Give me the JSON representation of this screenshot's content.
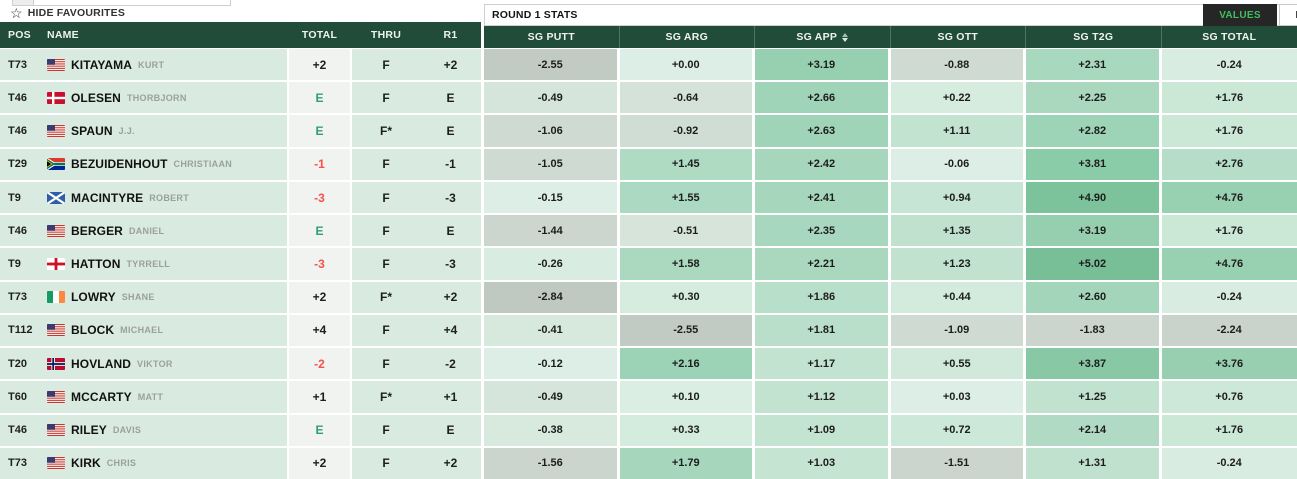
{
  "top_bar": {
    "hide_favourites_label": "HIDE FAVOURITES",
    "star_icon": "☆",
    "stats_panel_title": "ROUND 1 STATS",
    "values_button_label": "VALUES",
    "ranks_button_label": "RANKS"
  },
  "colors": {
    "header_green": "#214c39",
    "row_mint": "#d9ebe0",
    "total_cell_bg": "#f1f3f1",
    "negative_score_red": "#f4524a",
    "even_score_green": "#2f9e77",
    "values_button_bg": "#262626",
    "values_button_text": "#3fbf5f",
    "heatmap_low_gray": "#c0c8c2",
    "heatmap_high_green": "#78bf97"
  },
  "table": {
    "left_headers": [
      {
        "label": "POS"
      },
      {
        "label": "NAME"
      },
      {
        "label": "TOTAL"
      },
      {
        "label": "THRU"
      },
      {
        "label": "R1"
      }
    ],
    "stat_headers": [
      {
        "label": "SG PUTT"
      },
      {
        "label": "SG ARG"
      },
      {
        "label": "SG APP",
        "sorted": true
      },
      {
        "label": "SG OTT"
      },
      {
        "label": "SG T2G"
      },
      {
        "label": "SG TOTAL"
      }
    ],
    "rows": [
      {
        "pos": "T73",
        "flag": "usa",
        "last": "KITAYAMA",
        "first": "KURT",
        "total": "+2",
        "total_color": "black",
        "thru": "F",
        "r1": "+2",
        "stats": [
          {
            "v": "-2.55",
            "bg": "#c2cac4"
          },
          {
            "v": "+0.00",
            "bg": "#dceee5"
          },
          {
            "v": "+3.19",
            "bg": "#97d0b1"
          },
          {
            "v": "-0.88",
            "bg": "#cfdad3"
          },
          {
            "v": "+2.31",
            "bg": "#a8d8be"
          },
          {
            "v": "-0.24",
            "bg": "#d9ece1"
          }
        ]
      },
      {
        "pos": "T46",
        "flag": "den",
        "last": "OLESEN",
        "first": "THORBJORN",
        "total": "E",
        "total_color": "green",
        "thru": "F",
        "r1": "E",
        "stats": [
          {
            "v": "-0.49",
            "bg": "#d6e5db"
          },
          {
            "v": "-0.64",
            "bg": "#d4e2d9"
          },
          {
            "v": "+2.66",
            "bg": "#a0d4b8"
          },
          {
            "v": "+0.22",
            "bg": "#d6ecdf"
          },
          {
            "v": "+2.25",
            "bg": "#a9d8bf"
          },
          {
            "v": "+1.76",
            "bg": "#cbe8d7"
          }
        ]
      },
      {
        "pos": "T46",
        "flag": "usa",
        "last": "SPAUN",
        "first": "J.J.",
        "total": "E",
        "total_color": "green",
        "thru": "F*",
        "r1": "E",
        "stats": [
          {
            "v": "-1.06",
            "bg": "#cfdad3"
          },
          {
            "v": "-0.92",
            "bg": "#d0ddd5"
          },
          {
            "v": "+2.63",
            "bg": "#a0d4b8"
          },
          {
            "v": "+1.11",
            "bg": "#c3e3d1"
          },
          {
            "v": "+2.82",
            "bg": "#9dd3b6"
          },
          {
            "v": "+1.76",
            "bg": "#cbe8d7"
          }
        ]
      },
      {
        "pos": "T29",
        "flag": "rsa",
        "last": "BEZUIDENHOUT",
        "first": "CHRISTIAAN",
        "total": "-1",
        "total_color": "red",
        "thru": "F",
        "r1": "-1",
        "stats": [
          {
            "v": "-1.05",
            "bg": "#cfdad3"
          },
          {
            "v": "+1.45",
            "bg": "#afdbc3"
          },
          {
            "v": "+2.42",
            "bg": "#a6d7bd"
          },
          {
            "v": "-0.06",
            "bg": "#dceee5"
          },
          {
            "v": "+3.81",
            "bg": "#8acca7"
          },
          {
            "v": "+2.76",
            "bg": "#b5ddc7"
          }
        ]
      },
      {
        "pos": "T9",
        "flag": "sco",
        "last": "MACINTYRE",
        "first": "ROBERT",
        "total": "-3",
        "total_color": "red",
        "thru": "F",
        "r1": "-3",
        "stats": [
          {
            "v": "-0.15",
            "bg": "#dceee5"
          },
          {
            "v": "+1.55",
            "bg": "#acd9c1"
          },
          {
            "v": "+2.41",
            "bg": "#a6d7bd"
          },
          {
            "v": "+0.94",
            "bg": "#c7e5d4"
          },
          {
            "v": "+4.90",
            "bg": "#7cc29b"
          },
          {
            "v": "+4.76",
            "bg": "#98d0b2"
          }
        ]
      },
      {
        "pos": "T46",
        "flag": "usa",
        "last": "BERGER",
        "first": "DANIEL",
        "total": "E",
        "total_color": "green",
        "thru": "F",
        "r1": "E",
        "stats": [
          {
            "v": "-1.44",
            "bg": "#ccd6cf"
          },
          {
            "v": "-0.51",
            "bg": "#d6e4da"
          },
          {
            "v": "+2.35",
            "bg": "#a7d7be"
          },
          {
            "v": "+1.35",
            "bg": "#bfe1cd"
          },
          {
            "v": "+3.19",
            "bg": "#96cfb0"
          },
          {
            "v": "+1.76",
            "bg": "#cbe8d7"
          }
        ]
      },
      {
        "pos": "T9",
        "flag": "eng",
        "last": "HATTON",
        "first": "TYRRELL",
        "total": "-3",
        "total_color": "red",
        "thru": "F",
        "r1": "-3",
        "stats": [
          {
            "v": "-0.26",
            "bg": "#d9ece1"
          },
          {
            "v": "+1.58",
            "bg": "#abd9c0"
          },
          {
            "v": "+2.21",
            "bg": "#a9d8bf"
          },
          {
            "v": "+1.23",
            "bg": "#c1e2cf"
          },
          {
            "v": "+5.02",
            "bg": "#78bf97"
          },
          {
            "v": "+4.76",
            "bg": "#98d0b2"
          }
        ]
      },
      {
        "pos": "T73",
        "flag": "irl",
        "last": "LOWRY",
        "first": "SHANE",
        "total": "+2",
        "total_color": "black",
        "thru": "F*",
        "r1": "+2",
        "stats": [
          {
            "v": "-2.84",
            "bg": "#c0c8c2"
          },
          {
            "v": "+0.30",
            "bg": "#d5ecdf"
          },
          {
            "v": "+1.86",
            "bg": "#b8dfc9"
          },
          {
            "v": "+0.44",
            "bg": "#d2ebdd"
          },
          {
            "v": "+2.60",
            "bg": "#a3d5ba"
          },
          {
            "v": "-0.24",
            "bg": "#d9ece1"
          }
        ]
      },
      {
        "pos": "T112",
        "flag": "usa",
        "last": "BLOCK",
        "first": "MICHAEL",
        "total": "+4",
        "total_color": "black",
        "thru": "F",
        "r1": "+4",
        "stats": [
          {
            "v": "-0.41",
            "bg": "#d7e9dd"
          },
          {
            "v": "-2.55",
            "bg": "#c2cac4"
          },
          {
            "v": "+1.81",
            "bg": "#b9dfca"
          },
          {
            "v": "-1.09",
            "bg": "#cedad2"
          },
          {
            "v": "-1.83",
            "bg": "#cbd5ce"
          },
          {
            "v": "-2.24",
            "bg": "#c9d3cc"
          }
        ]
      },
      {
        "pos": "T20",
        "flag": "nor",
        "last": "HOVLAND",
        "first": "VIKTOR",
        "total": "-2",
        "total_color": "red",
        "thru": "F",
        "r1": "-2",
        "stats": [
          {
            "v": "-0.12",
            "bg": "#dceee5"
          },
          {
            "v": "+2.16",
            "bg": "#9cd2b5"
          },
          {
            "v": "+1.17",
            "bg": "#c2e3d0"
          },
          {
            "v": "+0.55",
            "bg": "#d0e9db"
          },
          {
            "v": "+3.87",
            "bg": "#89c8a5"
          },
          {
            "v": "+3.76",
            "bg": "#97cfb0"
          }
        ]
      },
      {
        "pos": "T60",
        "flag": "usa",
        "last": "MCCARTY",
        "first": "MATT",
        "total": "+1",
        "total_color": "black",
        "thru": "F*",
        "r1": "+1",
        "stats": [
          {
            "v": "-0.49",
            "bg": "#d6e5db"
          },
          {
            "v": "+0.10",
            "bg": "#daeee3"
          },
          {
            "v": "+1.12",
            "bg": "#c3e3d1"
          },
          {
            "v": "+0.03",
            "bg": "#dceee5"
          },
          {
            "v": "+1.25",
            "bg": "#c2e2d0"
          },
          {
            "v": "+0.76",
            "bg": "#cde8d9"
          }
        ]
      },
      {
        "pos": "T46",
        "flag": "usa",
        "last": "RILEY",
        "first": "DAVIS",
        "total": "E",
        "total_color": "green",
        "thru": "F",
        "r1": "E",
        "stats": [
          {
            "v": "-0.38",
            "bg": "#d8eade"
          },
          {
            "v": "+0.33",
            "bg": "#d4ecde"
          },
          {
            "v": "+1.09",
            "bg": "#c4e4d2"
          },
          {
            "v": "+0.72",
            "bg": "#cce8d8"
          },
          {
            "v": "+2.14",
            "bg": "#b0dac3"
          },
          {
            "v": "+1.76",
            "bg": "#cbe8d7"
          }
        ]
      },
      {
        "pos": "T73",
        "flag": "usa",
        "last": "KIRK",
        "first": "CHRIS",
        "total": "+2",
        "total_color": "black",
        "thru": "F",
        "r1": "+2",
        "stats": [
          {
            "v": "-1.56",
            "bg": "#cbd5ce"
          },
          {
            "v": "+1.79",
            "bg": "#a6d7bc"
          },
          {
            "v": "+1.03",
            "bg": "#c5e4d2"
          },
          {
            "v": "-1.51",
            "bg": "#cbd5ce"
          },
          {
            "v": "+1.31",
            "bg": "#c0e1ce"
          },
          {
            "v": "-0.24",
            "bg": "#d9ece1"
          }
        ]
      }
    ]
  }
}
